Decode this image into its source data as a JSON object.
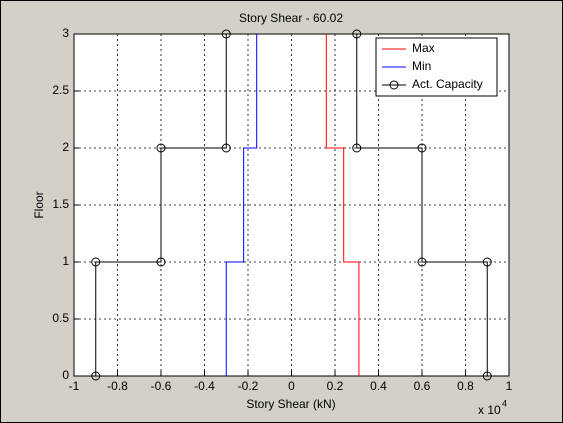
{
  "chart_data": {
    "type": "line",
    "title": "Story Shear - 60.02",
    "x_label": "Story Shear (kN)",
    "y_label": "Floor",
    "x_multiplier": "x 10",
    "x_exponent": "4",
    "xlim": [
      -1,
      1
    ],
    "xticks": [
      -1,
      -0.8,
      -0.6,
      -0.4,
      -0.2,
      0,
      0.2,
      0.4,
      0.6,
      0.8,
      1
    ],
    "ylim": [
      0,
      3
    ],
    "yticks": [
      0,
      0.5,
      1,
      1.5,
      2,
      2.5,
      3
    ],
    "grid": true,
    "legend": "upper right",
    "series": [
      {
        "name": "Max",
        "color": "#ff0000",
        "marker": "none",
        "x": [
          0.31,
          0.31,
          0.24,
          0.24,
          0.16,
          0.16
        ],
        "values": [
          0,
          1,
          1,
          2,
          2,
          3
        ]
      },
      {
        "name": "Min",
        "color": "#0000ff",
        "marker": "none",
        "x": [
          -0.3,
          -0.3,
          -0.22,
          -0.22,
          -0.16,
          -0.16
        ],
        "values": [
          0,
          1,
          1,
          2,
          2,
          3
        ]
      },
      {
        "name": "Act. Capacity",
        "color": "#000000",
        "marker": "circle",
        "x": [
          0.9,
          0.9,
          0.6,
          0.6,
          0.3,
          0.3,
          null,
          -0.9,
          -0.9,
          -0.6,
          -0.6,
          -0.3,
          -0.3
        ],
        "values": [
          0,
          1,
          1,
          2,
          2,
          3,
          null,
          0,
          1,
          1,
          2,
          2,
          3
        ]
      }
    ]
  }
}
